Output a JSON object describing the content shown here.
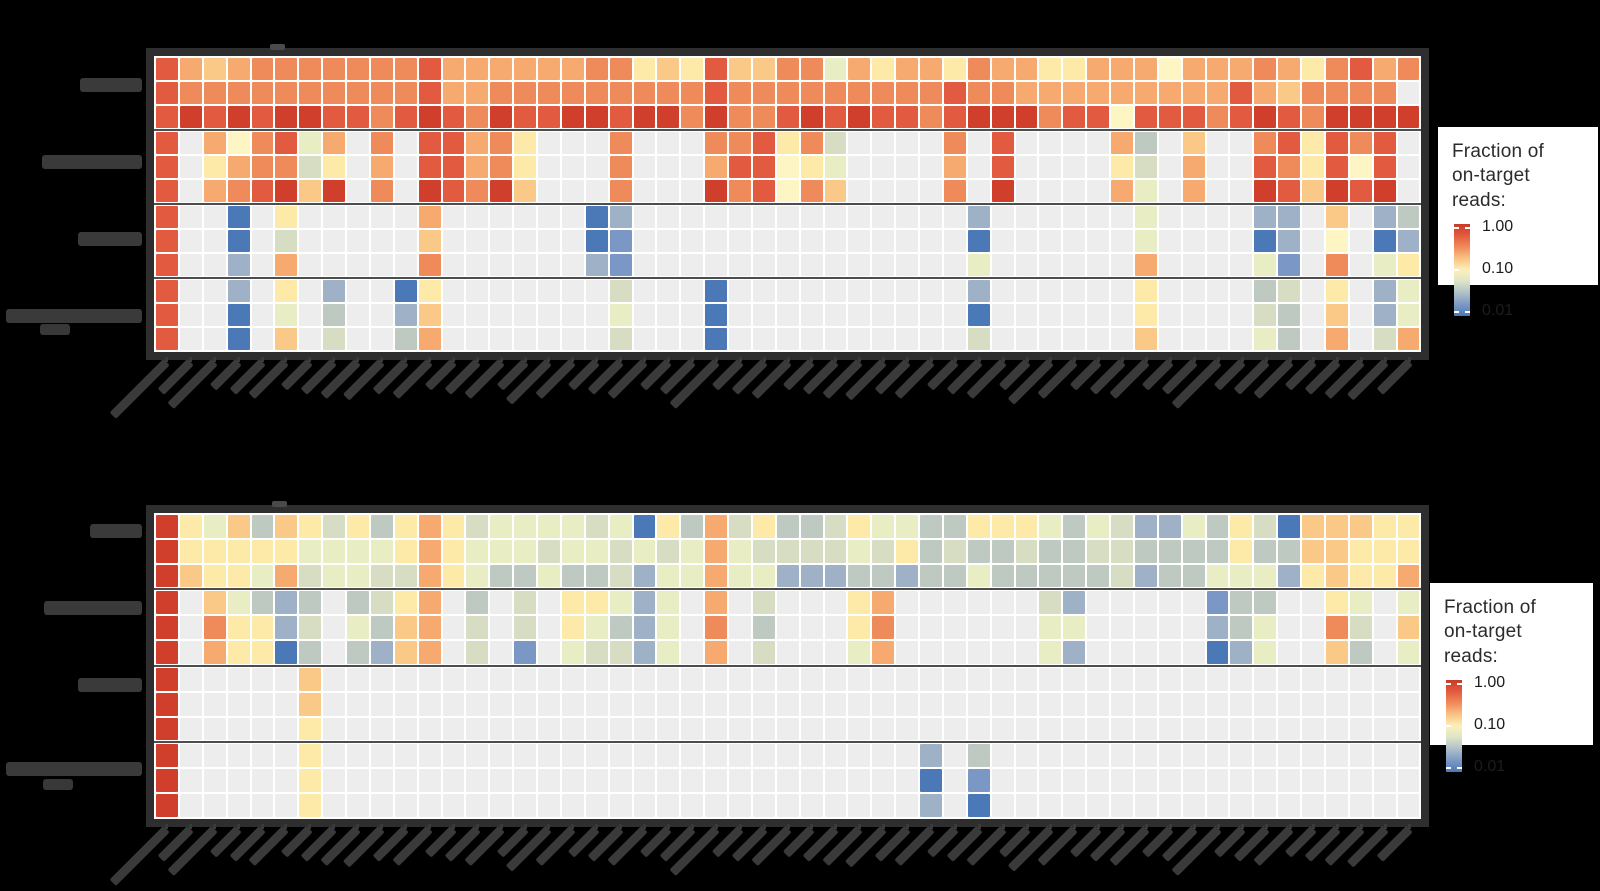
{
  "colors": {
    "background": "#000000",
    "panel_frame": "#2e2e2e",
    "plot_background": "#ffffff",
    "group_separator": "#4d4d4d",
    "axis_label_ink": "#3a3a3a",
    "na_cell": "#ededed",
    "legend_background": "#ffffff",
    "legend_text": "#2b2b2b"
  },
  "palette": {
    "R": "#cf3f2c",
    "r": "#e25b40",
    "o": "#ef8a5b",
    "O": "#f6aa70",
    "a": "#fac988",
    "y": "#fdeaa9",
    "c": "#fdf5c4",
    "e": "#e9edc3",
    "g": "#d6ddc2",
    "G": "#bdc9c1",
    "b": "#9fb1c7",
    "B": "#7b97c5",
    "U": "#4b78b6",
    ".": "#ededed"
  },
  "value_map": {
    "R": 1.0,
    "r": 0.65,
    "o": 0.42,
    "O": 0.28,
    "a": 0.19,
    "y": 0.13,
    "c": 0.1,
    "e": 0.075,
    "g": 0.055,
    "G": 0.035,
    "b": 0.022,
    "B": 0.015,
    "U": 0.01,
    ".": null
  },
  "legend": {
    "title_line1": "Fraction of",
    "title_line2": "on-target reads:",
    "ticks": [
      "1.00",
      "0.10",
      "0.01"
    ],
    "gradient_stops": [
      "#c93a28 0%",
      "#e2593e 12%",
      "#f08a5c 25%",
      "#f9c083 37%",
      "#fdf0b8 50%",
      "#dfe5c8 62%",
      "#b3c2c9 74%",
      "#7e9ac6 87%",
      "#4b78b6 100%"
    ]
  },
  "chart_data": [
    {
      "type": "heatmap",
      "panel": "top",
      "n_cols": 53,
      "n_rows": 12,
      "row_group_size": 3,
      "n_row_groups": 4,
      "scale": "log fraction of on-target reads, 0.01 - 1.00 (RdYlBu), gray = NA",
      "x_axis": {
        "n_ticks": 53,
        "labels_legible": false
      },
      "y_axis": {
        "n_groups": 4,
        "labels_legible": false
      },
      "rows": [
        "rOaOooooooorOOOOOOooyayraaooeOyOOyoOOyyOOOcOOOoOyorOo",
        "roooooooooorOOooooooooorooooooooorooOOOOOOOOOrOaoooo",
        "rRrRrRRrrorRroRrrRRrRRoRoorRrRrrorRRRorrcrrrorRroRRRR",
        "r.OcoreO.o.rrOoy...o...ooryog....o.r....OG.a..oryror.",
        "r.yOoogy.O.rrOoy...o...Orrcye....O.r....yg.O..royrcr.",
        "r.OorRaR.o.RroRa...o...Rorcoa....o.R....Oe.O..RraRrR.",
        "r..U.y.....O......Ub..............b......e....bb.a.bG",
        "r..U.g.....a......UB..............U......e....Ub.c.Ub",
        "r..b.O.....o......bB..............e......O....eB.o.ey",
        "r..b.y.b..Uy.......g...U..........b......y....Gg.y.be",
        "r..U.e.G..ba.......e...U..........U......y....gG.a.be",
        "r..U.a.g..GO.......g...U..........g......a....eG.O.gO"
      ]
    },
    {
      "type": "heatmap",
      "panel": "bottom",
      "n_cols": 53,
      "n_rows": 12,
      "row_group_size": 3,
      "n_row_groups": 4,
      "scale": "log fraction of on-target reads, 0.01 - 1.00 (RdYlBu), gray = NA",
      "x_axis": {
        "n_ticks": 53,
        "labels_legible": false
      },
      "y_axis": {
        "n_groups": 4,
        "labels_legible": false
      },
      "rows": [
        "RyeaGaygyGyOygeeeegeUyGOgyGGgyeeGGyyyeGegbbeGygUaaayy",
        "RyyyyyeeeeyOyeeegeegegeOeggggegyGgGGgGGggGGGGyGGaayyy",
        "RayyeOgeeggOyeGGeGGgbeeOeebbbGGbGGeGGGGGgbGGeeebyayyO",
        "R.aeGbG.GgyO.G.g.yyebe.O.g...yO......gb.....BGG..ye.e.",
        "R.oyybg.eGaO.g.g.yeGbe.o.G...yo......ee.....bGe..og.a.",
        "R.OyyUG.GbaO.g.B.eggbe.O.g...eO......eb.....Ube..aG.e.",
        "R.....a..............................................",
        "R.....a..............................................",
        "R.....y..............................................",
        "R.....y.........................b.G...................",
        "R.....y.........................U.B...................",
        "R.....y.........................b.U..................."
      ]
    }
  ]
}
